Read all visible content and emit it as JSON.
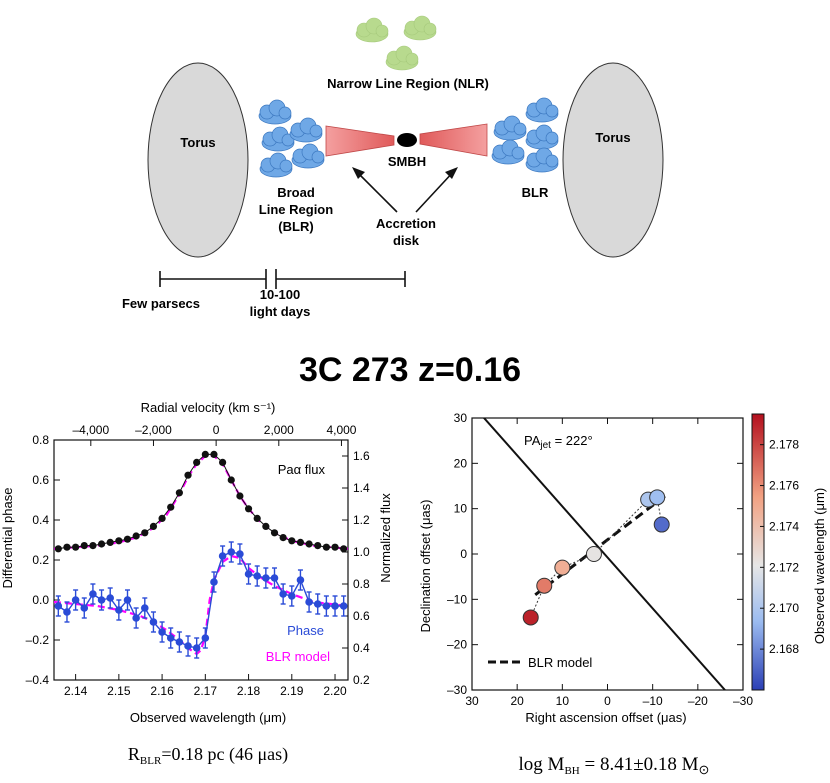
{
  "diagram": {
    "torus_left": "Torus",
    "torus_right": "Torus",
    "nlr": "Narrow Line Region (NLR)",
    "smbh": "SMBH",
    "blr_left_line1": "Broad",
    "blr_left_line2": "Line Region",
    "blr_left_line3": "(BLR)",
    "blr_right": "BLR",
    "accretion_line1": "Accretion",
    "accretion_line2": "disk",
    "scale_few_parsecs": "Few parsecs",
    "scale_days_line1": "10-100",
    "scale_days_line2": "light days"
  },
  "title": "3C 273 z=0.16",
  "colors": {
    "torus": "#d9d9d9",
    "blr_cloud": "#5b9bd5",
    "nlr_cloud": "#b5d98a",
    "disk": "#f08080",
    "phase": "#2a4bd7",
    "model": "#ff00ff"
  },
  "chart_data": [
    {
      "type": "line",
      "xlabel": "Observed wavelength (μm)",
      "top_xlabel": "Radial velocity (km s⁻¹)",
      "ylabel_left": "Differential phase",
      "ylabel_right": "Normalized flux",
      "xlim": [
        2.135,
        2.203
      ],
      "ylim_left": [
        -0.4,
        0.8
      ],
      "ylim_right": [
        0.2,
        1.7
      ],
      "x_ticks": [
        "2.14",
        "2.15",
        "2.16",
        "2.17",
        "2.18",
        "2.19",
        "2.20"
      ],
      "y_left_ticks": [
        "–0.4",
        "–0.2",
        "0.0",
        "0.2",
        "0.4",
        "0.6",
        "0.8"
      ],
      "y_right_ticks": [
        "0.2",
        "0.4",
        "0.6",
        "0.8",
        "1.0",
        "1.2",
        "1.4",
        "1.6"
      ],
      "top_ticks": [
        "–4,000",
        "–2,000",
        "0",
        "2,000",
        "4,000"
      ],
      "top_tick_velocities": [
        -4000,
        -2000,
        0,
        2000,
        4000
      ],
      "rest_wavelength": 2.1725,
      "legend": {
        "flux": "Paα flux",
        "phase": "Phase",
        "model": "BLR model"
      },
      "flux_series": {
        "name": "Paα flux",
        "x": [
          2.136,
          2.138,
          2.14,
          2.142,
          2.144,
          2.146,
          2.148,
          2.15,
          2.152,
          2.154,
          2.156,
          2.158,
          2.16,
          2.162,
          2.164,
          2.166,
          2.168,
          2.17,
          2.172,
          2.174,
          2.176,
          2.178,
          2.18,
          2.182,
          2.184,
          2.186,
          2.188,
          2.19,
          2.192,
          2.194,
          2.196,
          2.198,
          2.2,
          2.202
        ],
        "y": [
          1.02,
          1.03,
          1.03,
          1.04,
          1.04,
          1.05,
          1.06,
          1.07,
          1.08,
          1.1,
          1.12,
          1.16,
          1.21,
          1.28,
          1.37,
          1.48,
          1.56,
          1.61,
          1.61,
          1.56,
          1.45,
          1.35,
          1.27,
          1.21,
          1.16,
          1.12,
          1.09,
          1.07,
          1.06,
          1.05,
          1.04,
          1.03,
          1.03,
          1.02
        ]
      },
      "phase_series": {
        "name": "Phase",
        "x": [
          2.136,
          2.138,
          2.14,
          2.142,
          2.144,
          2.146,
          2.148,
          2.15,
          2.152,
          2.154,
          2.156,
          2.158,
          2.16,
          2.162,
          2.164,
          2.166,
          2.168,
          2.17,
          2.172,
          2.174,
          2.176,
          2.178,
          2.18,
          2.182,
          2.184,
          2.186,
          2.188,
          2.19,
          2.192,
          2.194,
          2.196,
          2.198,
          2.2,
          2.202
        ],
        "y": [
          -0.03,
          -0.06,
          0.0,
          -0.04,
          0.03,
          0.0,
          0.01,
          -0.05,
          0.0,
          -0.09,
          -0.04,
          -0.11,
          -0.16,
          -0.19,
          -0.21,
          -0.23,
          -0.24,
          -0.19,
          0.09,
          0.22,
          0.24,
          0.23,
          0.13,
          0.12,
          0.11,
          0.11,
          0.03,
          0.02,
          0.1,
          -0.01,
          -0.02,
          -0.03,
          -0.03,
          -0.03
        ],
        "err": [
          0.05,
          0.05,
          0.05,
          0.05,
          0.05,
          0.05,
          0.05,
          0.05,
          0.05,
          0.05,
          0.05,
          0.05,
          0.05,
          0.05,
          0.05,
          0.05,
          0.05,
          0.05,
          0.05,
          0.05,
          0.05,
          0.05,
          0.05,
          0.05,
          0.05,
          0.05,
          0.05,
          0.05,
          0.05,
          0.05,
          0.05,
          0.05,
          0.05,
          0.05
        ]
      },
      "model_phase": {
        "x": [
          2.135,
          2.14,
          2.145,
          2.15,
          2.155,
          2.158,
          2.161,
          2.164,
          2.166,
          2.168,
          2.169,
          2.17,
          2.171,
          2.172,
          2.174,
          2.176,
          2.178,
          2.18,
          2.183,
          2.186,
          2.19,
          2.195,
          2.203
        ],
        "y": [
          -0.01,
          -0.02,
          -0.03,
          -0.05,
          -0.08,
          -0.11,
          -0.15,
          -0.2,
          -0.24,
          -0.27,
          -0.25,
          -0.18,
          0.0,
          0.1,
          0.19,
          0.22,
          0.21,
          0.16,
          0.11,
          0.07,
          0.03,
          -0.01,
          -0.03
        ]
      },
      "model_flux": {
        "x": [
          2.135,
          2.14,
          2.145,
          2.15,
          2.154,
          2.158,
          2.161,
          2.164,
          2.166,
          2.168,
          2.17,
          2.172,
          2.174,
          2.176,
          2.178,
          2.18,
          2.183,
          2.186,
          2.19,
          2.195,
          2.203
        ],
        "y": [
          1.02,
          1.03,
          1.04,
          1.06,
          1.09,
          1.15,
          1.23,
          1.36,
          1.47,
          1.55,
          1.6,
          1.6,
          1.55,
          1.45,
          1.35,
          1.27,
          1.18,
          1.12,
          1.07,
          1.04,
          1.02
        ]
      },
      "caption": "R",
      "caption_sub": "BLR",
      "caption_rest": "=0.18 pc (46 μas)"
    },
    {
      "type": "scatter",
      "xlabel": "Right ascension offset (μas)",
      "ylabel": "Declination offset (μas)",
      "colorbar_label": "Observed wavelength (μm)",
      "xlim": [
        30,
        -30
      ],
      "ylim": [
        -30,
        30
      ],
      "x_ticks": [
        "30",
        "20",
        "10",
        "0",
        "–10",
        "–20",
        "–30"
      ],
      "y_ticks": [
        "–30",
        "–20",
        "–10",
        "0",
        "10",
        "20",
        "30"
      ],
      "colorbar_range": [
        2.166,
        2.1795
      ],
      "colorbar_ticks": [
        "2.168",
        "2.170",
        "2.172",
        "2.174",
        "2.176",
        "2.178"
      ],
      "pa_label": "PA",
      "pa_sub": "jet",
      "pa_value": " = 222°",
      "jet_line": {
        "x": [
          30,
          -26
        ],
        "y": [
          33,
          -30
        ]
      },
      "model_line": {
        "x": [
          16,
          -13
        ],
        "y": [
          -9,
          13
        ]
      },
      "legend": "BLR model",
      "points": [
        {
          "x": 17,
          "y": -14,
          "wl": 2.179
        },
        {
          "x": 14,
          "y": -7,
          "wl": 2.1765
        },
        {
          "x": 10,
          "y": -3,
          "wl": 2.1748
        },
        {
          "x": 3,
          "y": 0,
          "wl": 2.1722
        },
        {
          "x": -9,
          "y": 12,
          "wl": 2.17
        },
        {
          "x": -11,
          "y": 12.5,
          "wl": 2.1695
        },
        {
          "x": -12,
          "y": 6.5,
          "wl": 2.1672
        }
      ],
      "caption": "log M",
      "caption_sub": "BH",
      "caption_rest": " = 8.41±0.18 M",
      "caption_sun": "⊙"
    }
  ]
}
